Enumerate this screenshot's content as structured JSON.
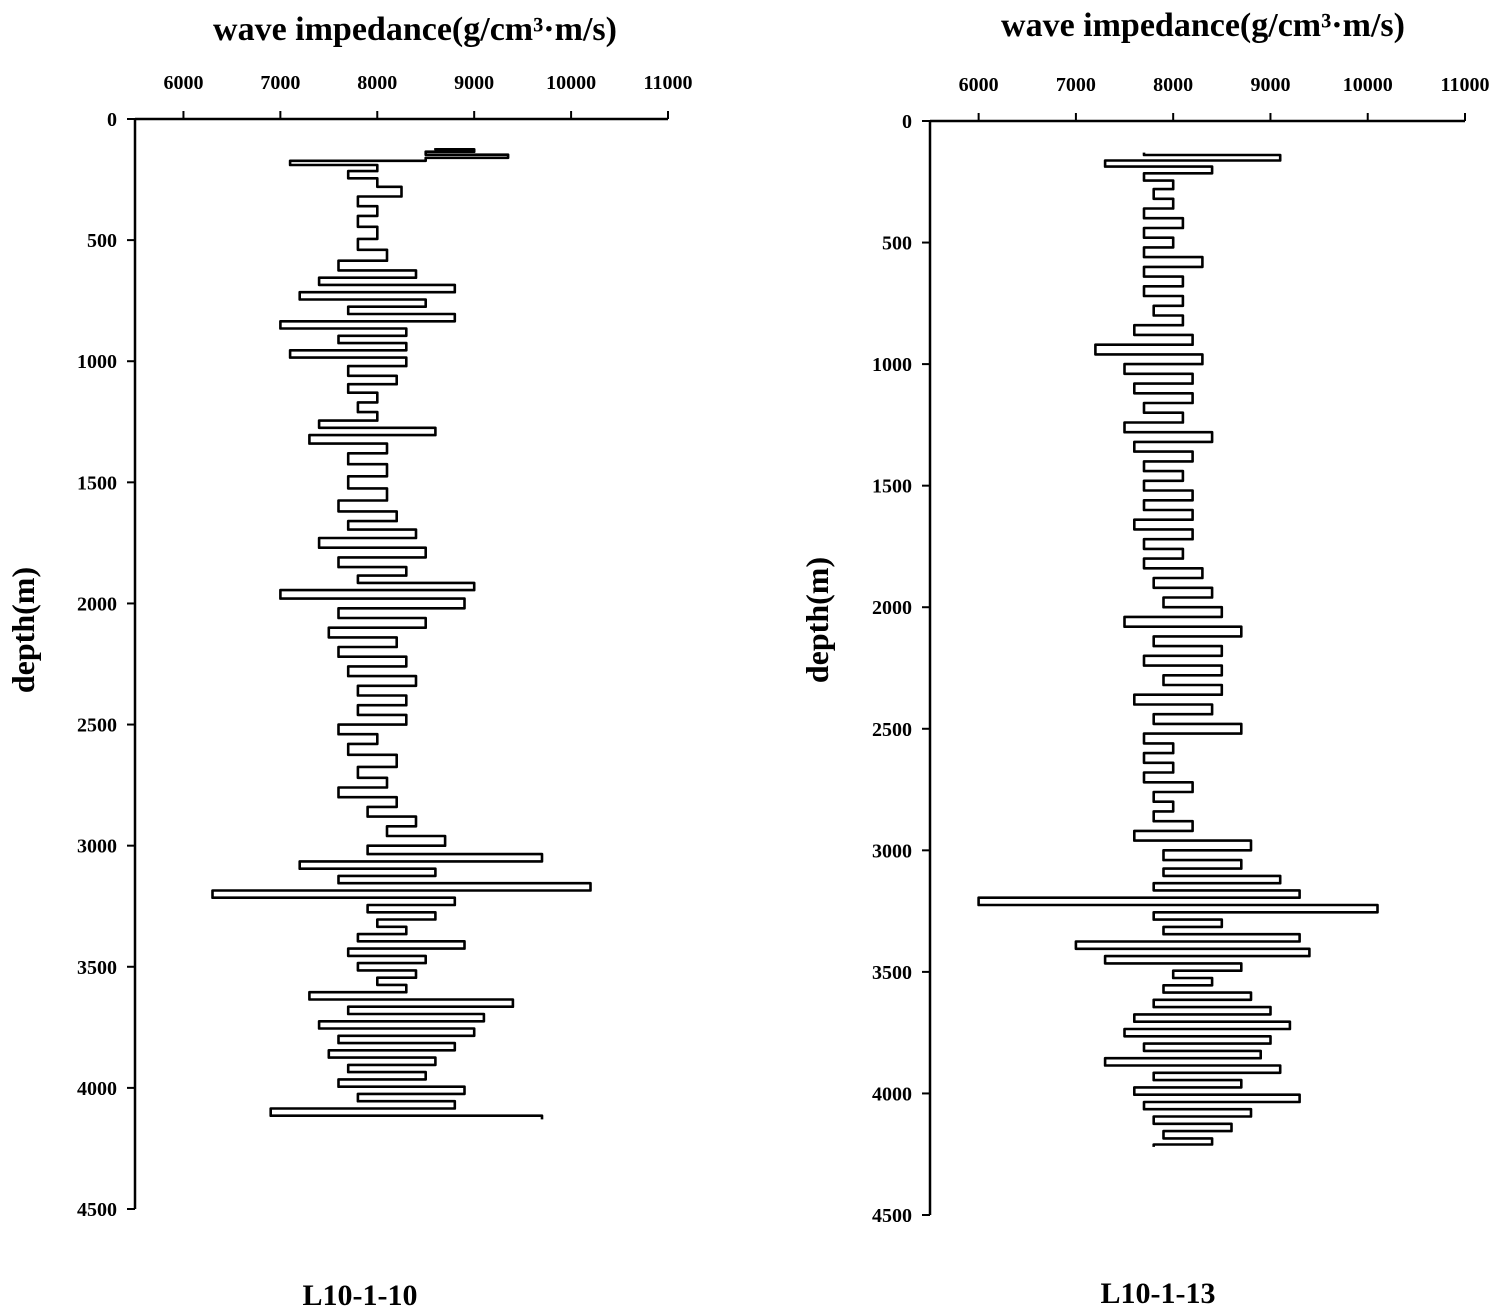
{
  "chart_data": [
    {
      "type": "line",
      "orientation": "vertical-depth-log",
      "title": "wave impedance(g/cm³·m/s)",
      "ylabel": "depth(m)",
      "caption": "L10-1-10",
      "x_ticks": [
        "6000",
        "7000",
        "8000",
        "9000",
        "10000",
        "11000"
      ],
      "y_ticks": [
        "0",
        "500",
        "1000",
        "1500",
        "2000",
        "2500",
        "3000",
        "3500",
        "4000",
        "4500"
      ],
      "xlim": [
        5500,
        11000
      ],
      "ylim": [
        0,
        4500
      ],
      "y_inverted": true,
      "series": [
        {
          "depth": [
            120,
            130,
            140,
            155,
            165,
            180,
            200,
            230,
            260,
            300,
            340,
            380,
            420,
            470,
            520,
            560,
            610,
            640,
            670,
            700,
            730,
            760,
            790,
            820,
            850,
            880,
            910,
            940,
            970,
            1000,
            1040,
            1080,
            1110,
            1150,
            1190,
            1230,
            1260,
            1290,
            1320,
            1360,
            1400,
            1450,
            1500,
            1550,
            1600,
            1640,
            1680,
            1710,
            1750,
            1790,
            1830,
            1870,
            1900,
            1930,
            1960,
            2000,
            2040,
            2080,
            2120,
            2160,
            2200,
            2240,
            2280,
            2320,
            2360,
            2400,
            2440,
            2480,
            2520,
            2560,
            2600,
            2650,
            2700,
            2740,
            2780,
            2820,
            2860,
            2900,
            2940,
            2980,
            3020,
            3050,
            3080,
            3110,
            3140,
            3170,
            3200,
            3230,
            3260,
            3290,
            3320,
            3350,
            3380,
            3410,
            3440,
            3470,
            3500,
            3530,
            3560,
            3590,
            3620,
            3650,
            3680,
            3710,
            3740,
            3770,
            3800,
            3830,
            3860,
            3890,
            3920,
            3950,
            3980,
            4010,
            4040,
            4070,
            4100,
            4130
          ],
          "impedance": [
            8600,
            9000,
            8500,
            9350,
            8500,
            7100,
            8000,
            7700,
            8000,
            8250,
            7800,
            8000,
            7800,
            8000,
            7800,
            8100,
            7600,
            8400,
            7400,
            8800,
            7200,
            8500,
            7700,
            8800,
            7000,
            8300,
            7600,
            8300,
            7100,
            8300,
            7700,
            8200,
            7700,
            8000,
            7800,
            8000,
            7400,
            8600,
            7300,
            8100,
            7700,
            8100,
            7700,
            8100,
            7600,
            8200,
            7700,
            8400,
            7400,
            8500,
            7600,
            8300,
            7800,
            9000,
            7000,
            8900,
            7600,
            8500,
            7500,
            8200,
            7600,
            8300,
            7700,
            8400,
            7800,
            8300,
            7800,
            8300,
            7600,
            8000,
            7700,
            8200,
            7800,
            8100,
            7600,
            8200,
            7900,
            8400,
            8100,
            8700,
            7900,
            9700,
            7200,
            8600,
            7600,
            10200,
            6300,
            8800,
            7900,
            8600,
            8000,
            8300,
            7800,
            8900,
            7700,
            8500,
            7800,
            8400,
            8000,
            8300,
            7300,
            9400,
            7700,
            9100,
            7400,
            9000,
            7600,
            8800,
            7500,
            8600,
            7700,
            8500,
            7600,
            8900,
            7800,
            8800,
            6900,
            9700
          ]
        }
      ]
    },
    {
      "type": "line",
      "orientation": "vertical-depth-log",
      "title": "wave impedance(g/cm³·m/s)",
      "ylabel": "depth(m)",
      "caption": "L10-1-13",
      "x_ticks": [
        "6000",
        "7000",
        "8000",
        "9000",
        "10000",
        "11000"
      ],
      "y_ticks": [
        "0",
        "500",
        "1000",
        "1500",
        "2000",
        "2500",
        "3000",
        "3500",
        "4000",
        "4500"
      ],
      "xlim": [
        5500,
        11000
      ],
      "ylim": [
        0,
        4500
      ],
      "y_inverted": true,
      "series": [
        {
          "depth": [
            130,
            150,
            175,
            200,
            230,
            260,
            300,
            340,
            380,
            420,
            460,
            500,
            540,
            580,
            620,
            660,
            700,
            740,
            780,
            820,
            860,
            900,
            940,
            980,
            1020,
            1060,
            1100,
            1140,
            1180,
            1220,
            1260,
            1300,
            1340,
            1380,
            1420,
            1460,
            1500,
            1540,
            1580,
            1620,
            1660,
            1700,
            1740,
            1780,
            1820,
            1860,
            1900,
            1940,
            1980,
            2020,
            2060,
            2100,
            2140,
            2180,
            2220,
            2260,
            2300,
            2340,
            2380,
            2420,
            2460,
            2500,
            2540,
            2580,
            2620,
            2660,
            2700,
            2740,
            2780,
            2820,
            2860,
            2900,
            2940,
            2980,
            3020,
            3060,
            3090,
            3120,
            3150,
            3180,
            3210,
            3240,
            3270,
            3300,
            3330,
            3360,
            3390,
            3420,
            3450,
            3480,
            3510,
            3540,
            3570,
            3600,
            3630,
            3660,
            3690,
            3720,
            3750,
            3780,
            3810,
            3840,
            3870,
            3900,
            3930,
            3960,
            3990,
            4020,
            4050,
            4080,
            4110,
            4140,
            4170,
            4200,
            4220
          ],
          "impedance": [
            7700,
            9100,
            7300,
            8400,
            7700,
            8000,
            7800,
            8000,
            7700,
            8100,
            7700,
            8000,
            7700,
            8300,
            7700,
            8100,
            7700,
            8100,
            7800,
            8100,
            7600,
            8200,
            7200,
            8300,
            7500,
            8200,
            7600,
            8200,
            7700,
            8100,
            7500,
            8400,
            7600,
            8200,
            7700,
            8100,
            7700,
            8200,
            7700,
            8200,
            7600,
            8200,
            7700,
            8100,
            7700,
            8300,
            7800,
            8400,
            7900,
            8500,
            7500,
            8700,
            7800,
            8500,
            7700,
            8500,
            7900,
            8500,
            7600,
            8400,
            7800,
            8700,
            7700,
            8000,
            7700,
            8000,
            7700,
            8200,
            7800,
            8000,
            7800,
            8200,
            7600,
            8800,
            7900,
            8700,
            7900,
            9100,
            7800,
            9300,
            6000,
            10100,
            7800,
            8500,
            7900,
            9300,
            7000,
            9400,
            7300,
            8700,
            8000,
            8400,
            7900,
            8800,
            7800,
            9000,
            7600,
            9200,
            7500,
            9000,
            7700,
            8900,
            7300,
            9100,
            7800,
            8700,
            7600,
            9300,
            7700,
            8800,
            7800,
            8600,
            7900,
            8400,
            7800
          ]
        }
      ]
    }
  ]
}
